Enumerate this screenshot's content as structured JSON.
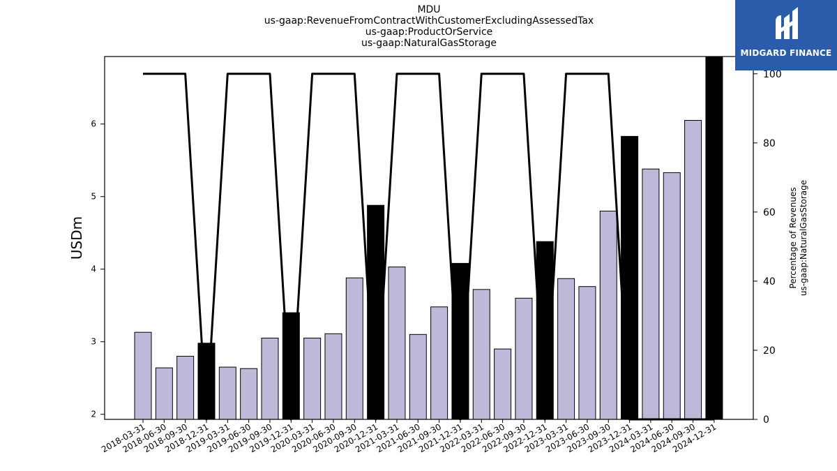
{
  "title": {
    "line1": "MDU",
    "line2": "us-gaap:RevenueFromContractWithCustomerExcludingAssessedTax",
    "line3": "us-gaap:ProductOrService",
    "line4": "us-gaap:NaturalGasStorage"
  },
  "logo": {
    "text": "MIDGARD FINANCE",
    "color": "#2b5bab"
  },
  "chart_data": {
    "type": "bar",
    "categories": [
      "2018-03-31",
      "2018-06-30",
      "2018-09-30",
      "2018-12-31",
      "2019-03-31",
      "2019-06-30",
      "2019-09-30",
      "2019-12-31",
      "2020-03-31",
      "2020-06-30",
      "2020-09-30",
      "2020-12-31",
      "2021-03-31",
      "2021-06-30",
      "2021-09-30",
      "2021-12-31",
      "2022-03-31",
      "2022-06-30",
      "2022-09-30",
      "2022-12-31",
      "2023-03-31",
      "2023-06-30",
      "2023-09-30",
      "2023-12-31",
      "2024-03-31",
      "2024-06-30",
      "2024-09-30",
      "2024-12-31"
    ],
    "values": [
      3.13,
      2.64,
      2.8,
      2.98,
      2.65,
      2.63,
      3.05,
      3.4,
      3.05,
      3.11,
      3.88,
      4.88,
      4.03,
      3.1,
      3.48,
      4.08,
      3.72,
      2.9,
      3.6,
      4.38,
      3.87,
      3.76,
      4.8,
      5.83,
      5.38,
      5.33,
      6.05,
      6.93
    ],
    "highlighted": [
      false,
      false,
      false,
      true,
      false,
      false,
      false,
      true,
      false,
      false,
      false,
      true,
      false,
      false,
      false,
      true,
      false,
      false,
      false,
      true,
      false,
      false,
      false,
      true,
      false,
      false,
      false,
      true
    ],
    "bar_color": "#bcb9d9",
    "highlight_color": "#000000",
    "ylabel": "USDm",
    "ylim": [
      1.93,
      6.93
    ],
    "yticks": [
      2,
      3,
      4,
      5,
      6
    ],
    "secondary": {
      "type": "line",
      "ylabel_line1": "Percentage of Revenues",
      "ylabel_line2": "us-gaap:NaturalGasStorage",
      "values": [
        100,
        100,
        100,
        0,
        100,
        100,
        100,
        0,
        100,
        100,
        100,
        0,
        100,
        100,
        100,
        0,
        100,
        100,
        100,
        0,
        100,
        100,
        100,
        0,
        0,
        0,
        0,
        0
      ],
      "ylim": [
        0,
        105
      ],
      "yticks": [
        0,
        20,
        40,
        60,
        80,
        100
      ],
      "color": "#000000"
    },
    "grid": false
  }
}
